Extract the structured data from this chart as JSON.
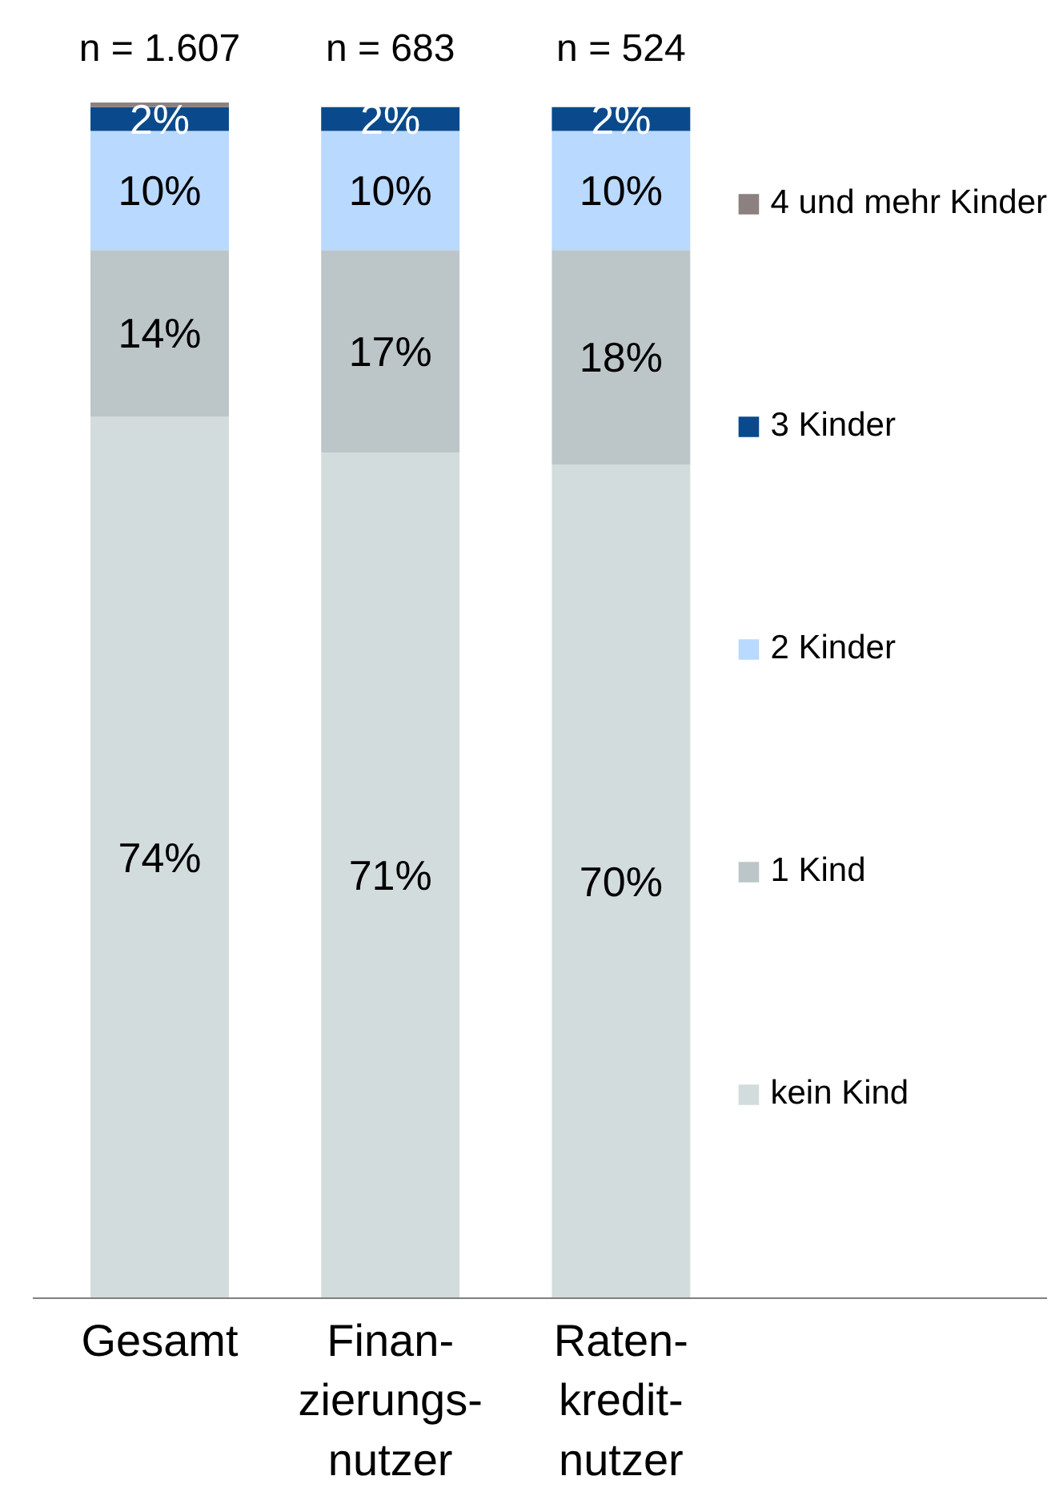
{
  "chart_data": {
    "type": "bar",
    "stacked": true,
    "categories": [
      "Gesamt",
      "Finan-\nzierungs-\nnutzer",
      "Raten-\nkredit-\nnutzer"
    ],
    "series": [
      {
        "name": "kein Kind",
        "color": "#d3dcdc",
        "values": [
          74,
          71,
          70
        ],
        "value_labels": [
          "74%",
          "71%",
          "70%"
        ]
      },
      {
        "name": "1 Kind",
        "color": "#bcc6c8",
        "values": [
          14,
          17,
          18
        ],
        "value_labels": [
          "14%",
          "17%",
          "18%"
        ]
      },
      {
        "name": "2 Kinder",
        "color": "#b9d9ff",
        "values": [
          10,
          10,
          10
        ],
        "value_labels": [
          "10%",
          "10%",
          "10%"
        ]
      },
      {
        "name": "3 Kinder",
        "color": "#0a4a8c",
        "values": [
          2,
          2,
          2
        ],
        "value_labels": [
          "2%",
          "2%",
          "2%"
        ]
      },
      {
        "name": "4 und mehr Kinder",
        "color": "#8c8080",
        "values": [
          0.4,
          0,
          0
        ],
        "value_labels": [
          null,
          null,
          null
        ]
      }
    ],
    "annotations": [
      "n = 1.607",
      "n = 683",
      "n = 524"
    ],
    "legend": "right"
  }
}
